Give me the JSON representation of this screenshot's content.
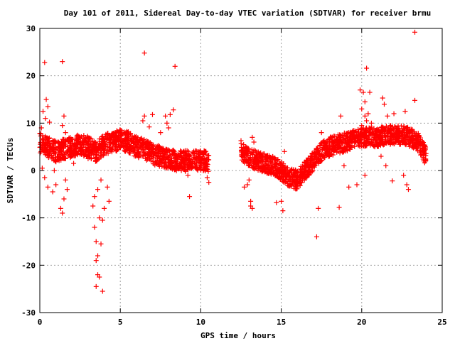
{
  "chart_data": {
    "type": "scatter",
    "title": "Day 101 of 2011, Sidereal Day-to-day VTEC variation (SDTVAR) for receiver brmu",
    "xlabel": "GPS time / hours",
    "ylabel": "SDTVAR / TECUs",
    "xlim": [
      0,
      25
    ],
    "ylim": [
      -30,
      30
    ],
    "x_ticks": [
      "0",
      "5",
      "10",
      "15",
      "20",
      "25"
    ],
    "y_ticks": [
      "30",
      "20",
      "10",
      "0",
      "-10",
      "-20",
      "-30"
    ],
    "x_tick_values": [
      0,
      5,
      10,
      15,
      20,
      25
    ],
    "y_tick_values": [
      30,
      20,
      10,
      0,
      -10,
      -20,
      -30
    ],
    "grid": true,
    "marker": "+",
    "color": "#ff0000",
    "trend_segments": [
      {
        "x": [
          0.0,
          0.5,
          1.0,
          1.5,
          2.0,
          2.5,
          3.0,
          3.5,
          4.0,
          4.5,
          5.0,
          5.5,
          6.0,
          6.5,
          7.0,
          7.5,
          8.0,
          8.5,
          9.0,
          9.5,
          10.0,
          10.5
        ],
        "y": [
          6.0,
          5.0,
          4.0,
          4.5,
          5.0,
          5.5,
          5.0,
          4.0,
          5.5,
          6.0,
          6.5,
          6.0,
          5.0,
          4.5,
          3.5,
          3.0,
          2.5,
          2.0,
          2.0,
          2.0,
          2.0,
          2.0
        ],
        "spread": 2.2
      },
      {
        "x": [
          12.5,
          13.0,
          13.5,
          14.0,
          14.5,
          15.0,
          15.5,
          16.0,
          16.5,
          17.0,
          17.5,
          18.0,
          18.5,
          19.0,
          19.5,
          20.0,
          20.5,
          21.0,
          21.5,
          22.0,
          22.5,
          23.0,
          23.5,
          24.0
        ],
        "y": [
          4.0,
          3.0,
          2.0,
          1.5,
          1.0,
          0.0,
          -1.5,
          -2.0,
          0.0,
          2.0,
          4.0,
          5.0,
          5.5,
          6.0,
          6.5,
          7.0,
          7.0,
          7.0,
          7.5,
          7.5,
          7.5,
          7.0,
          6.0,
          3.0
        ],
        "spread": 2.0
      }
    ],
    "points": [
      [
        0.3,
        22.8
      ],
      [
        1.4,
        23.0
      ],
      [
        6.5,
        24.8
      ],
      [
        8.4,
        22.0
      ],
      [
        23.3,
        29.2
      ],
      [
        20.3,
        21.6
      ],
      [
        0.2,
        12.5
      ],
      [
        0.4,
        15.0
      ],
      [
        0.5,
        13.5
      ],
      [
        0.35,
        11.0
      ],
      [
        0.6,
        10.2
      ],
      [
        0.1,
        9.0
      ],
      [
        1.5,
        11.5
      ],
      [
        1.4,
        9.5
      ],
      [
        1.6,
        8.0
      ],
      [
        0.5,
        -3.5
      ],
      [
        1.0,
        -3.0
      ],
      [
        0.8,
        -4.5
      ],
      [
        1.3,
        -8.0
      ],
      [
        1.4,
        -9.0
      ],
      [
        1.5,
        -6.0
      ],
      [
        1.6,
        -2.0
      ],
      [
        1.7,
        -4.0
      ],
      [
        3.4,
        -12.0
      ],
      [
        3.5,
        -15.0
      ],
      [
        3.6,
        -18.0
      ],
      [
        3.5,
        -19.0
      ],
      [
        3.7,
        -22.5
      ],
      [
        3.6,
        -22.0
      ],
      [
        3.5,
        -24.5
      ],
      [
        3.9,
        -25.5
      ],
      [
        3.8,
        -15.5
      ],
      [
        3.9,
        -10.5
      ],
      [
        4.0,
        -8.0
      ],
      [
        3.7,
        -10.0
      ],
      [
        3.3,
        -7.5
      ],
      [
        3.4,
        -5.5
      ],
      [
        3.6,
        -4.0
      ],
      [
        3.8,
        -2.0
      ],
      [
        4.2,
        -3.5
      ],
      [
        4.3,
        -6.5
      ],
      [
        6.5,
        11.5
      ],
      [
        6.4,
        10.5
      ],
      [
        7.0,
        11.8
      ],
      [
        6.8,
        9.2
      ],
      [
        7.8,
        11.5
      ],
      [
        8.1,
        11.8
      ],
      [
        8.3,
        12.8
      ],
      [
        7.9,
        10.0
      ],
      [
        7.5,
        8.0
      ],
      [
        6.2,
        6.2
      ],
      [
        8.0,
        9.0
      ],
      [
        9.3,
        -5.5
      ],
      [
        10.4,
        -1.5
      ],
      [
        10.5,
        -2.5
      ],
      [
        9.2,
        -1.0
      ],
      [
        12.5,
        6.3
      ],
      [
        12.8,
        5.0
      ],
      [
        13.0,
        4.0
      ],
      [
        12.7,
        -3.5
      ],
      [
        13.1,
        -6.5
      ],
      [
        13.2,
        -8.0
      ],
      [
        12.9,
        -3.0
      ],
      [
        13.2,
        7.0
      ],
      [
        13.3,
        6.0
      ],
      [
        13.1,
        -7.5
      ],
      [
        13.0,
        -2.0
      ],
      [
        14.7,
        -6.8
      ],
      [
        15.0,
        -6.5
      ],
      [
        15.1,
        -8.5
      ],
      [
        15.2,
        4.0
      ],
      [
        17.2,
        -14.0
      ],
      [
        17.3,
        -8.0
      ],
      [
        17.5,
        8.0
      ],
      [
        18.6,
        -7.8
      ],
      [
        18.7,
        11.5
      ],
      [
        19.7,
        -3.0
      ],
      [
        19.9,
        17.0
      ],
      [
        20.0,
        13.0
      ],
      [
        20.2,
        14.5
      ],
      [
        20.1,
        16.5
      ],
      [
        20.4,
        12.0
      ],
      [
        20.5,
        16.5
      ],
      [
        20.3,
        10.5
      ],
      [
        20.6,
        10.0
      ],
      [
        20.0,
        9.5
      ],
      [
        20.2,
        11.5
      ],
      [
        21.3,
        15.3
      ],
      [
        21.4,
        14.0
      ],
      [
        21.6,
        11.5
      ],
      [
        21.8,
        9.5
      ],
      [
        22.0,
        12.0
      ],
      [
        22.7,
        12.5
      ],
      [
        23.3,
        14.8
      ],
      [
        22.8,
        -3.0
      ],
      [
        22.9,
        -4.0
      ],
      [
        22.6,
        -1.0
      ],
      [
        19.2,
        -3.5
      ],
      [
        18.9,
        1.0
      ],
      [
        20.2,
        -1.0
      ],
      [
        21.5,
        1.0
      ],
      [
        21.9,
        -2.2
      ],
      [
        21.2,
        3.0
      ],
      [
        0.15,
        0.5
      ],
      [
        0.3,
        -1.5
      ],
      [
        0.9,
        0.0
      ],
      [
        2.1,
        1.5
      ],
      [
        3.0,
        2.5
      ],
      [
        2.5,
        3.5
      ]
    ]
  }
}
